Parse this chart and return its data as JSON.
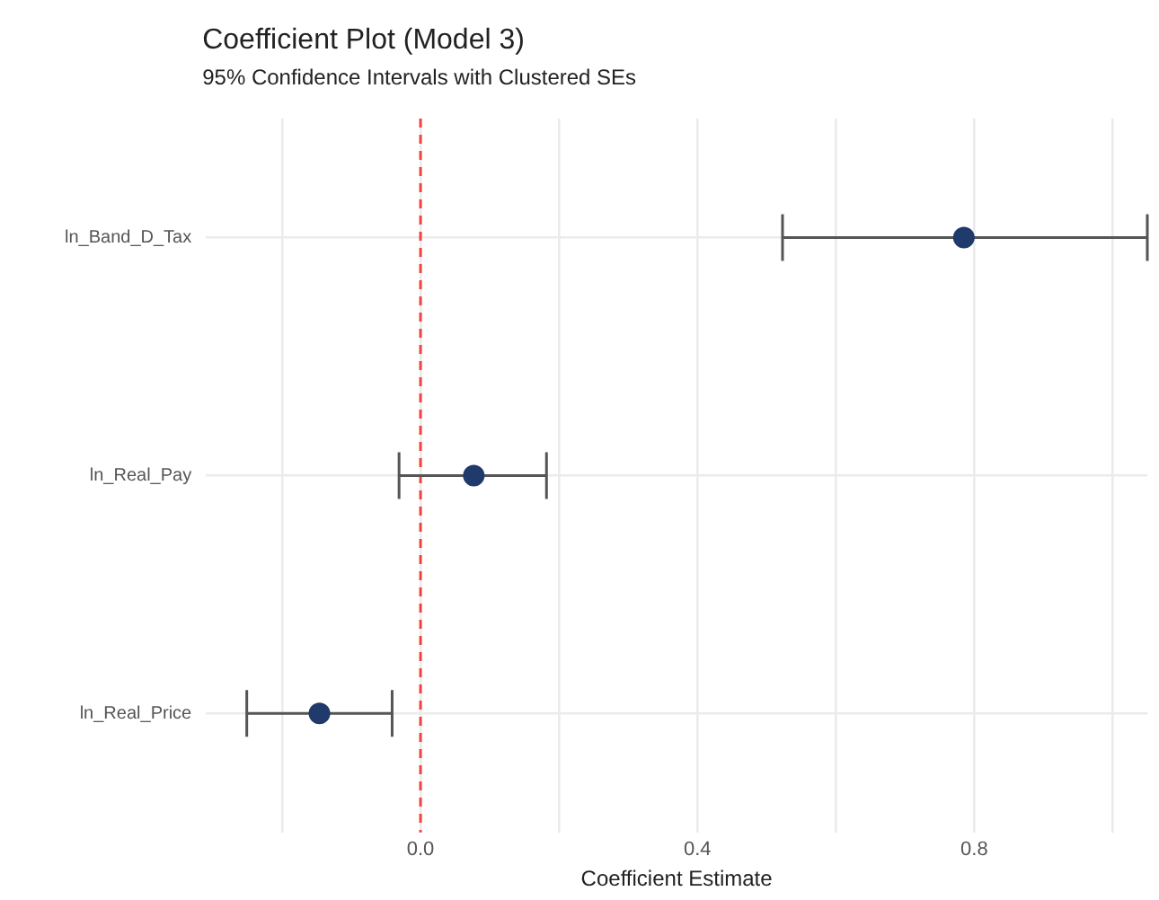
{
  "chart_data": {
    "type": "scatter",
    "orientation": "horizontal",
    "title": "Coefficient Plot (Model 3)",
    "subtitle": "95% Confidence Intervals with Clustered SEs",
    "xlabel": "Coefficient Estimate",
    "categories": [
      "ln_Band_D_Tax",
      "ln_Real_Pay",
      "ln_Real_Price"
    ],
    "series": [
      {
        "values": [
          0.785,
          0.077,
          -0.146
        ],
        "color": "#1f3a6b",
        "errors": [
          [
            0.523,
            1.05
          ],
          [
            -0.031,
            0.182
          ],
          [
            -0.251,
            -0.041
          ]
        ]
      }
    ],
    "xlim": [
      -0.31,
      1.05
    ],
    "xticks": [
      {
        "value": -0.2,
        "label": null
      },
      {
        "value": 0,
        "label": "0.0"
      },
      {
        "value": 0.2,
        "label": null
      },
      0.4,
      {
        "value": 0.6,
        "label": null
      },
      0.8,
      {
        "value": 1.0,
        "label": null
      }
    ],
    "ref_lines": [
      {
        "axis": "x",
        "value": 0,
        "color": "#f0453a",
        "line_style": "dashed"
      }
    ],
    "grid": true,
    "marker": "circle",
    "legend": false
  }
}
